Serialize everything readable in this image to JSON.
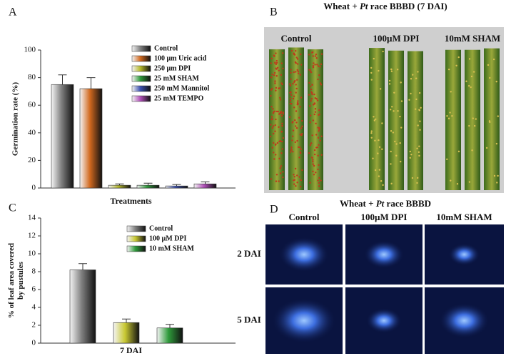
{
  "chart_data": [
    {
      "type": "bar",
      "label": "A",
      "ylabel": "Germination rate (%)",
      "xlabel": "Treatments",
      "categories": [
        null
      ],
      "ylim": [
        0,
        100
      ],
      "yticks": [
        0,
        20,
        40,
        60,
        80,
        100
      ],
      "series": [
        {
          "name": "Control",
          "color": "#808080",
          "values": [
            75
          ],
          "errors": [
            7
          ]
        },
        {
          "name": "100 μm Uric acid",
          "color": "#d2691e",
          "values": [
            72
          ],
          "errors": [
            8
          ]
        },
        {
          "name": "250 μm DPI",
          "color": "#b5b82a",
          "values": [
            2
          ],
          "errors": [
            1
          ]
        },
        {
          "name": "25 mM SHAM",
          "color": "#2e9a3a",
          "values": [
            2
          ],
          "errors": [
            1.5
          ]
        },
        {
          "name": "250 mM Mannitol",
          "color": "#3a4fb0",
          "values": [
            1.5
          ],
          "errors": [
            1
          ]
        },
        {
          "name": "25 mM TEMPO",
          "color": "#b04fb8",
          "values": [
            3
          ],
          "errors": [
            1.5
          ]
        }
      ]
    },
    {
      "type": "bar",
      "label": "C",
      "ylabel": [
        "% of leaf area covered",
        "by pustules"
      ],
      "xlabel": "7 DAI",
      "categories": [
        null
      ],
      "ylim": [
        0,
        14
      ],
      "yticks": [
        0,
        2,
        4,
        6,
        8,
        10,
        12,
        14
      ],
      "series": [
        {
          "name": "Control",
          "color": "#808080",
          "values": [
            8.2
          ],
          "errors": [
            0.7
          ]
        },
        {
          "name": "100 µM DPI",
          "color": "#c8c832",
          "values": [
            2.3
          ],
          "errors": [
            0.4
          ]
        },
        {
          "name": "10 mM SHAM",
          "color": "#2e9a3a",
          "values": [
            1.7
          ],
          "errors": [
            0.4
          ]
        }
      ]
    }
  ],
  "panel_b": {
    "label": "B",
    "title": {
      "pre": "Wheat + ",
      "italic": "Pt",
      "post": " race BBBD (7 DAI)"
    },
    "columns": [
      "Control",
      "100µM DPI",
      "10mM SHAM"
    ]
  },
  "panel_d": {
    "label": "D",
    "title": {
      "pre": "Wheat + ",
      "italic": "Pt",
      "post": " race BBBD"
    },
    "columns": [
      "Control",
      "100µM DPI",
      "10mM SHAM"
    ],
    "rows": [
      "2 DAI",
      "5 DAI"
    ]
  }
}
